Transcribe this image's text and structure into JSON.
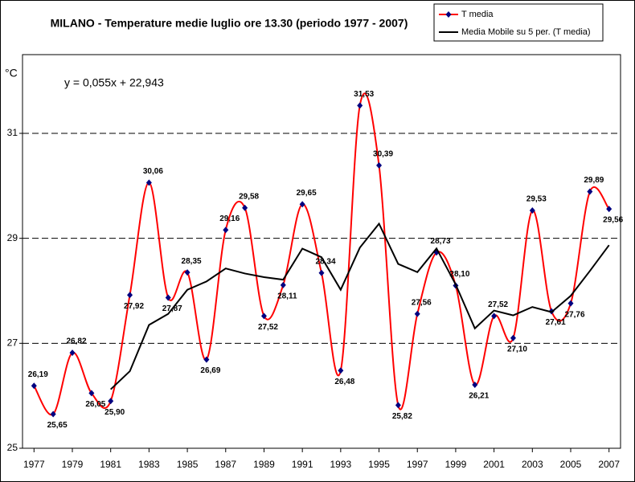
{
  "chart_data": {
    "type": "line",
    "title": "MILANO  - Temperature medie luglio ore 13.30 (periodo 1977 - 2007)",
    "y_label": "°C",
    "annotation": "y = 0,055x + 22,943",
    "x": [
      1977,
      1978,
      1979,
      1980,
      1981,
      1982,
      1983,
      1984,
      1985,
      1986,
      1987,
      1988,
      1989,
      1990,
      1991,
      1992,
      1993,
      1994,
      1995,
      1996,
      1997,
      1998,
      1999,
      2000,
      2001,
      2002,
      2003,
      2004,
      2005,
      2006,
      2007
    ],
    "series": [
      {
        "name": "T media",
        "color": "#ff0000",
        "marker_color": "#000080",
        "smooth": true,
        "values": [
          26.19,
          25.65,
          26.82,
          26.05,
          25.9,
          27.92,
          30.06,
          27.87,
          28.35,
          26.69,
          29.16,
          29.58,
          27.52,
          28.11,
          29.65,
          28.34,
          26.48,
          31.53,
          30.39,
          25.82,
          27.56,
          28.73,
          28.1,
          26.21,
          27.52,
          27.1,
          29.53,
          27.61,
          27.76,
          29.89,
          29.56
        ],
        "value_labels": [
          "26,19",
          "25,65",
          "26,82",
          "26,05",
          "25,90",
          "27,92",
          "30,06",
          "27,87",
          "28,35",
          "26,69",
          "29,16",
          "29,58",
          "27,52",
          "28,11",
          "29,65",
          "28,34",
          "26,48",
          "31,53",
          "30,39",
          "25,82",
          "27,56",
          "28,73",
          "28,10",
          "26,21",
          "27,52",
          "27,10",
          "29,53",
          "27,61",
          "27,76",
          "29,89",
          "29,56"
        ]
      },
      {
        "name": "Media Mobile su 5 per. (T media)",
        "color": "#000000",
        "smooth": false,
        "values": [
          null,
          null,
          null,
          null,
          26.122,
          26.468,
          27.35,
          27.56,
          28.02,
          28.178,
          28.426,
          28.33,
          28.26,
          28.212,
          28.804,
          28.64,
          28.02,
          28.822,
          29.278,
          28.512,
          28.356,
          28.806,
          28.12,
          27.284,
          27.624,
          27.532,
          27.692,
          27.594,
          27.904,
          28.378,
          28.87
        ]
      }
    ],
    "xlim": [
      1976.4,
      2007.6
    ],
    "xticks": [
      1977,
      1979,
      1981,
      1983,
      1985,
      1987,
      1989,
      1991,
      1993,
      1995,
      1997,
      1999,
      2001,
      2003,
      2005,
      2007
    ],
    "ylim": [
      25,
      32.5
    ],
    "yticks": [
      25,
      27,
      29,
      31
    ],
    "grid": true,
    "legend": "top-right"
  }
}
